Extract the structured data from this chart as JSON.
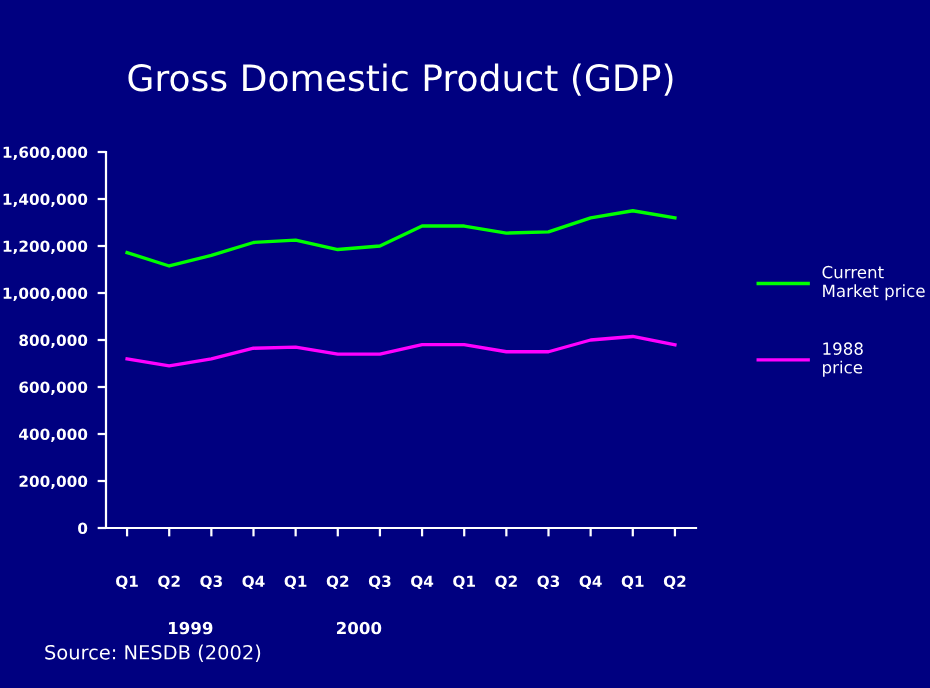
{
  "chart_data": {
    "type": "line",
    "title": "Gross Domestic Product (GDP)",
    "categories": [
      "Q1",
      "Q2",
      "Q3",
      "Q4",
      "Q1",
      "Q2",
      "Q3",
      "Q4",
      "Q1",
      "Q2",
      "Q3",
      "Q4",
      "Q1",
      "Q2"
    ],
    "series": [
      {
        "name": "Current Market price",
        "color": "#00ff00",
        "values": [
          1172000,
          1115000,
          1160000,
          1215000,
          1225000,
          1185000,
          1200000,
          1285000,
          1285000,
          1255000,
          1260000,
          1320000,
          1350000,
          1320000
        ]
      },
      {
        "name": "1988 price",
        "color": "#ff00ff",
        "values": [
          720000,
          690000,
          720000,
          765000,
          770000,
          740000,
          740000,
          780000,
          780000,
          750000,
          750000,
          800000,
          815000,
          780000
        ]
      }
    ],
    "ylim": [
      0,
      1600000
    ],
    "yticks": [
      {
        "value": 0,
        "label": "0"
      },
      {
        "value": 200000,
        "label": "200,000"
      },
      {
        "value": 400000,
        "label": "400,000"
      },
      {
        "value": 600000,
        "label": "600,000"
      },
      {
        "value": 800000,
        "label": "800,000"
      },
      {
        "value": 1000000,
        "label": "1,000,000"
      },
      {
        "value": 1200000,
        "label": "1,200,000"
      },
      {
        "value": 1400000,
        "label": "1,400,000"
      },
      {
        "value": 1600000,
        "label": "1,600,000"
      }
    ],
    "grid": false,
    "legend": "right",
    "marker": "none",
    "line_style": "solid",
    "annotations": [
      "1999",
      "2000",
      "Source: NESDB (2002)"
    ]
  }
}
